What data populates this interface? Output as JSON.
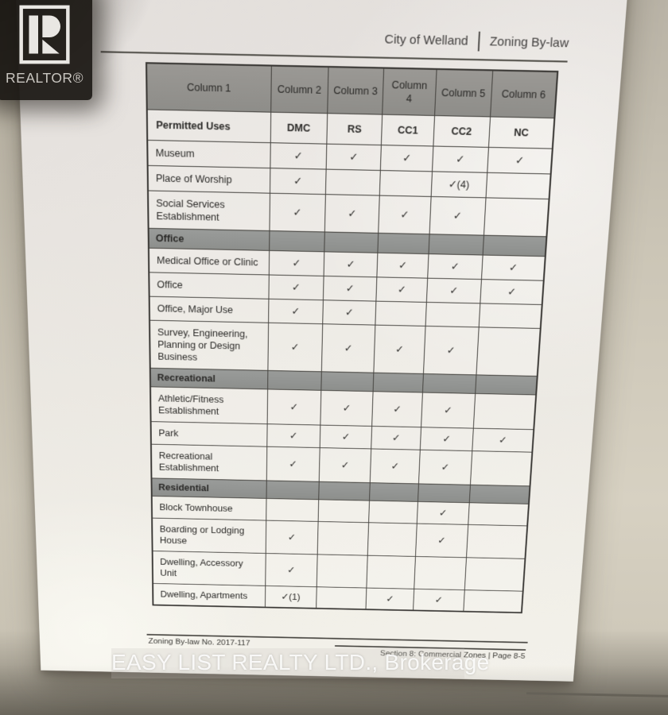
{
  "colors": {
    "column-header-bg": "#9a9894",
    "section-header-bg": "#8d8f8c",
    "table-border": "#45433f",
    "ink": "#2a2927"
  },
  "overlays": {
    "realtor_label": "REALTOR®",
    "watermark": "EASY LIST REALTY LTD., Brokerage"
  },
  "page_header": {
    "left": "City of Welland",
    "right": "Zoning By-law"
  },
  "table": {
    "column_headers": [
      "Column 1",
      "Column 2",
      "Column 3",
      "Column 4",
      "Column 5",
      "Column 6"
    ],
    "use_header": "Permitted Uses",
    "zone_headers": [
      "DMC",
      "RS",
      "CC1",
      "CC2",
      "NC"
    ],
    "rows": [
      {
        "type": "use",
        "label": "Museum",
        "marks": [
          "✓",
          "✓",
          "✓",
          "✓",
          "✓"
        ]
      },
      {
        "type": "use",
        "label": "Place of Worship",
        "marks": [
          "✓",
          "",
          "",
          "✓(4)",
          ""
        ]
      },
      {
        "type": "use",
        "label": "Social Services Establishment",
        "marks": [
          "✓",
          "✓",
          "✓",
          "✓",
          ""
        ]
      },
      {
        "type": "section",
        "label": "Office"
      },
      {
        "type": "use",
        "label": "Medical Office or Clinic",
        "marks": [
          "✓",
          "✓",
          "✓",
          "✓",
          "✓"
        ]
      },
      {
        "type": "use",
        "label": "Office",
        "marks": [
          "✓",
          "✓",
          "✓",
          "✓",
          "✓"
        ]
      },
      {
        "type": "use",
        "label": "Office, Major Use",
        "marks": [
          "✓",
          "✓",
          "",
          "",
          ""
        ]
      },
      {
        "type": "use",
        "label": "Survey, Engineering, Planning or Design Business",
        "marks": [
          "✓",
          "✓",
          "✓",
          "✓",
          ""
        ]
      },
      {
        "type": "section",
        "label": "Recreational"
      },
      {
        "type": "use",
        "label": "Athletic/Fitness Establishment",
        "marks": [
          "✓",
          "✓",
          "✓",
          "✓",
          ""
        ]
      },
      {
        "type": "use",
        "label": "Park",
        "marks": [
          "✓",
          "✓",
          "✓",
          "✓",
          "✓"
        ]
      },
      {
        "type": "use",
        "label": "Recreational Establishment",
        "marks": [
          "✓",
          "✓",
          "✓",
          "✓",
          ""
        ]
      },
      {
        "type": "section",
        "label": "Residential"
      },
      {
        "type": "use",
        "label": "Block Townhouse",
        "marks": [
          "",
          "",
          "",
          "✓",
          ""
        ]
      },
      {
        "type": "use",
        "label": "Boarding or Lodging House",
        "marks": [
          "✓",
          "",
          "",
          "✓",
          ""
        ]
      },
      {
        "type": "use",
        "label": "Dwelling, Accessory Unit",
        "marks": [
          "✓",
          "",
          "",
          "",
          ""
        ]
      },
      {
        "type": "use",
        "label": "Dwelling, Apartments",
        "marks": [
          "✓(1)",
          "",
          "✓",
          "✓",
          ""
        ]
      }
    ]
  },
  "page_footer": {
    "left": "Zoning By-law No. 2017-117",
    "right": "Section 8:  Commercial Zones  |  Page 8-5"
  }
}
